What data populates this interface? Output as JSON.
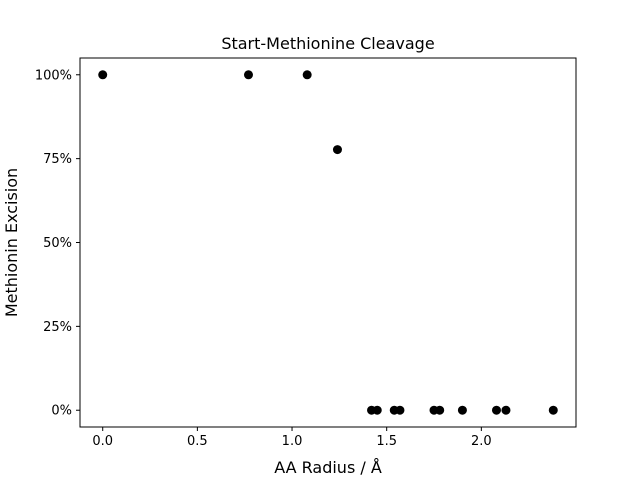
{
  "chart_data": {
    "type": "scatter",
    "title": "Start-Methionine Cleavage",
    "xlabel": "AA Radius / Å",
    "ylabel": "Methionin Excision",
    "xlim": [
      -0.12,
      2.5
    ],
    "ylim": [
      -0.05,
      1.05
    ],
    "xticks": [
      0.0,
      0.5,
      1.0,
      1.5,
      2.0
    ],
    "xtick_labels": [
      "0.0",
      "0.5",
      "1.0",
      "1.5",
      "2.0"
    ],
    "yticks": [
      0,
      0.25,
      0.5,
      0.75,
      1.0
    ],
    "ytick_labels": [
      "0%",
      "25%",
      "50%",
      "75%",
      "100%"
    ],
    "grid": false,
    "marker_color": "#000000",
    "points": [
      {
        "x": 0.0,
        "y": 1.0
      },
      {
        "x": 0.77,
        "y": 1.0
      },
      {
        "x": 1.08,
        "y": 1.0
      },
      {
        "x": 1.24,
        "y": 0.777
      },
      {
        "x": 1.42,
        "y": 0.0
      },
      {
        "x": 1.45,
        "y": 0.0
      },
      {
        "x": 1.54,
        "y": 0.0
      },
      {
        "x": 1.57,
        "y": 0.0
      },
      {
        "x": 1.75,
        "y": 0.0
      },
      {
        "x": 1.78,
        "y": 0.0
      },
      {
        "x": 1.9,
        "y": 0.0
      },
      {
        "x": 2.08,
        "y": 0.0
      },
      {
        "x": 2.13,
        "y": 0.0
      },
      {
        "x": 2.38,
        "y": 0.0
      }
    ]
  }
}
